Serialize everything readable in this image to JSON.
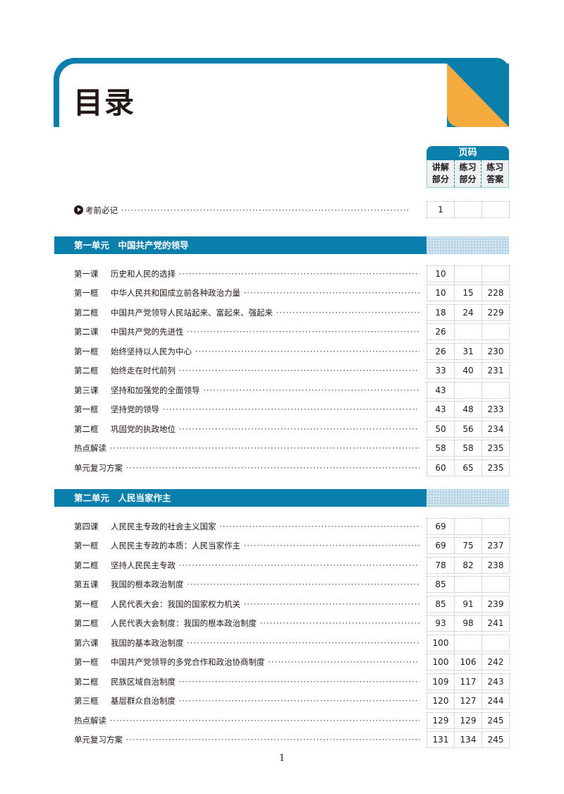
{
  "header": {
    "title": "目录"
  },
  "colors": {
    "accent": "#0a7fab",
    "corner": "#f5ab3d"
  },
  "page_header": {
    "title": "页码",
    "columns": [
      "讲解\n部分",
      "练习\n部分",
      "练习\n答案"
    ]
  },
  "intro": {
    "icon": "play-circle-icon",
    "label": "考前必记",
    "pages": [
      "1",
      "",
      ""
    ]
  },
  "units": [
    {
      "title": "第一单元　中国共产党的领导",
      "rows": [
        {
          "k": "第一课",
          "t": "历史和人民的选择",
          "p": [
            "10",
            "",
            ""
          ]
        },
        {
          "k": "第一框",
          "t": "中华人民共和国成立前各种政治力量",
          "p": [
            "10",
            "15",
            "228"
          ]
        },
        {
          "k": "第二框",
          "t": "中国共产党领导人民站起来、富起来、强起来",
          "p": [
            "18",
            "24",
            "229"
          ]
        },
        {
          "k": "第二课",
          "t": "中国共产党的先进性",
          "p": [
            "26",
            "",
            ""
          ]
        },
        {
          "k": "第一框",
          "t": "始终坚持以人民为中心",
          "p": [
            "26",
            "31",
            "230"
          ]
        },
        {
          "k": "第二框",
          "t": "始终走在时代前列",
          "p": [
            "33",
            "40",
            "231"
          ]
        },
        {
          "k": "第三课",
          "t": "坚持和加强党的全面领导",
          "p": [
            "43",
            "",
            ""
          ]
        },
        {
          "k": "第一框",
          "t": "坚持党的领导",
          "p": [
            "43",
            "48",
            "233"
          ]
        },
        {
          "k": "第二框",
          "t": "巩固党的执政地位",
          "p": [
            "50",
            "56",
            "234"
          ]
        },
        {
          "k": "热点解读",
          "t": "",
          "p": [
            "58",
            "58",
            "235"
          ]
        },
        {
          "k": "单元复习方案",
          "t": "",
          "p": [
            "60",
            "65",
            "235"
          ]
        }
      ]
    },
    {
      "title": "第二单元　人民当家作主",
      "rows": [
        {
          "k": "第四课",
          "t": "人民民主专政的社会主义国家",
          "p": [
            "69",
            "",
            ""
          ]
        },
        {
          "k": "第一框",
          "t": "人民民主专政的本质：人民当家作主",
          "p": [
            "69",
            "75",
            "237"
          ]
        },
        {
          "k": "第二框",
          "t": "坚持人民民主专政",
          "p": [
            "78",
            "82",
            "238"
          ]
        },
        {
          "k": "第五课",
          "t": "我国的根本政治制度",
          "p": [
            "85",
            "",
            ""
          ]
        },
        {
          "k": "第一框",
          "t": "人民代表大会：我国的国家权力机关",
          "p": [
            "85",
            "91",
            "239"
          ]
        },
        {
          "k": "第二框",
          "t": "人民代表大会制度：我国的根本政治制度",
          "p": [
            "93",
            "98",
            "241"
          ]
        },
        {
          "k": "第六课",
          "t": "我国的基本政治制度",
          "p": [
            "100",
            "",
            ""
          ]
        },
        {
          "k": "第一框",
          "t": "中国共产党领导的多党合作和政治协商制度",
          "p": [
            "100",
            "106",
            "242"
          ]
        },
        {
          "k": "第二框",
          "t": "民族区域自治制度",
          "p": [
            "109",
            "117",
            "243"
          ]
        },
        {
          "k": "第三框",
          "t": "基层群众自治制度",
          "p": [
            "120",
            "127",
            "244"
          ]
        },
        {
          "k": "热点解读",
          "t": "",
          "p": [
            "129",
            "129",
            "245"
          ]
        },
        {
          "k": "单元复习方案",
          "t": "",
          "p": [
            "131",
            "134",
            "245"
          ]
        }
      ]
    }
  ],
  "footer": {
    "page_number": "1"
  }
}
